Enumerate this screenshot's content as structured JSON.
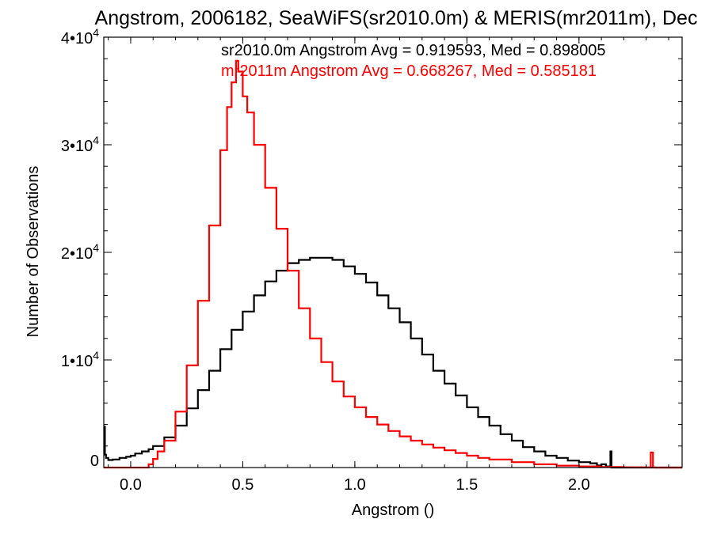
{
  "chart_data": {
    "type": "line",
    "title": "Angstrom, 2006182, SeaWiFS(sr2010.0m) & MERIS(mr2011m), Dec",
    "xlabel": "Angstrom ()",
    "ylabel": "Number of Observations",
    "xlim": [
      -0.12,
      2.46
    ],
    "ylim": [
      0,
      40000
    ],
    "x_ticks": [
      {
        "value": 0.0,
        "label": "0.0"
      },
      {
        "value": 0.5,
        "label": "0.5"
      },
      {
        "value": 1.0,
        "label": "1.0"
      },
      {
        "value": 1.5,
        "label": "1.5"
      },
      {
        "value": 2.0,
        "label": "2.0"
      }
    ],
    "y_ticks": [
      {
        "value": 0,
        "base": "0",
        "exp": ""
      },
      {
        "value": 10000,
        "base": "1•10",
        "exp": "4"
      },
      {
        "value": 20000,
        "base": "2•10",
        "exp": "4"
      },
      {
        "value": 30000,
        "base": "3•10",
        "exp": "4"
      },
      {
        "value": 40000,
        "base": "4•10",
        "exp": "4"
      }
    ],
    "grid": false,
    "annotations": [
      {
        "text": "sr2010.0m Angstrom Avg = 0.919593, Med = 0.898005",
        "color": "#000000"
      },
      {
        "text": "mr2011m Angstrom Avg = 0.668267, Med = 0.585181",
        "color": "#ff0000"
      }
    ],
    "series": [
      {
        "color": "#000000",
        "style": "histogram-step",
        "x": [
          -0.12,
          -0.115,
          -0.11,
          -0.1,
          -0.08,
          -0.05,
          -0.02,
          0.0,
          0.02,
          0.05,
          0.08,
          0.1,
          0.15,
          0.2,
          0.25,
          0.3,
          0.35,
          0.4,
          0.45,
          0.5,
          0.55,
          0.6,
          0.65,
          0.7,
          0.75,
          0.8,
          0.85,
          0.9,
          0.95,
          1.0,
          1.05,
          1.1,
          1.15,
          1.2,
          1.25,
          1.3,
          1.35,
          1.4,
          1.45,
          1.5,
          1.55,
          1.6,
          1.65,
          1.7,
          1.75,
          1.8,
          1.85,
          1.9,
          1.95,
          2.0,
          2.05,
          2.08,
          2.1,
          2.12,
          2.13,
          2.14,
          2.145,
          2.16,
          2.2,
          2.3,
          2.4,
          2.46
        ],
        "y": [
          3800,
          1200,
          900,
          700,
          750,
          900,
          1000,
          1100,
          1300,
          1500,
          1700,
          2000,
          2800,
          3900,
          5500,
          7200,
          9000,
          11000,
          12800,
          14500,
          16000,
          17300,
          18300,
          19000,
          19300,
          19500,
          19500,
          19300,
          18700,
          18000,
          17200,
          16000,
          14800,
          13500,
          12000,
          10500,
          9000,
          7800,
          6700,
          5600,
          4700,
          3900,
          3100,
          2500,
          1900,
          1500,
          1100,
          900,
          650,
          500,
          400,
          200,
          300,
          100,
          100,
          1500,
          0,
          0,
          0,
          0,
          0,
          0
        ]
      },
      {
        "color": "#ff0000",
        "style": "histogram-step",
        "x": [
          -0.12,
          0.0,
          0.07,
          0.08,
          0.1,
          0.12,
          0.15,
          0.2,
          0.25,
          0.3,
          0.35,
          0.4,
          0.43,
          0.45,
          0.47,
          0.48,
          0.5,
          0.52,
          0.55,
          0.6,
          0.65,
          0.7,
          0.75,
          0.8,
          0.85,
          0.9,
          0.95,
          1.0,
          1.05,
          1.1,
          1.15,
          1.2,
          1.25,
          1.3,
          1.35,
          1.4,
          1.45,
          1.5,
          1.55,
          1.6,
          1.7,
          1.8,
          1.9,
          2.0,
          2.1,
          2.2,
          2.3,
          2.32,
          2.33,
          2.34,
          2.4,
          2.46
        ],
        "y": [
          0,
          0,
          0,
          300,
          800,
          1500,
          2500,
          5200,
          9500,
          15500,
          22500,
          29500,
          33500,
          35800,
          37800,
          36800,
          34500,
          33000,
          30000,
          26000,
          22200,
          18300,
          14800,
          12000,
          9800,
          8000,
          6600,
          5600,
          4700,
          4000,
          3400,
          2900,
          2500,
          2150,
          1850,
          1600,
          1350,
          1100,
          900,
          750,
          500,
          300,
          180,
          100,
          50,
          20,
          10,
          1400,
          10,
          0,
          0,
          0
        ]
      }
    ]
  }
}
